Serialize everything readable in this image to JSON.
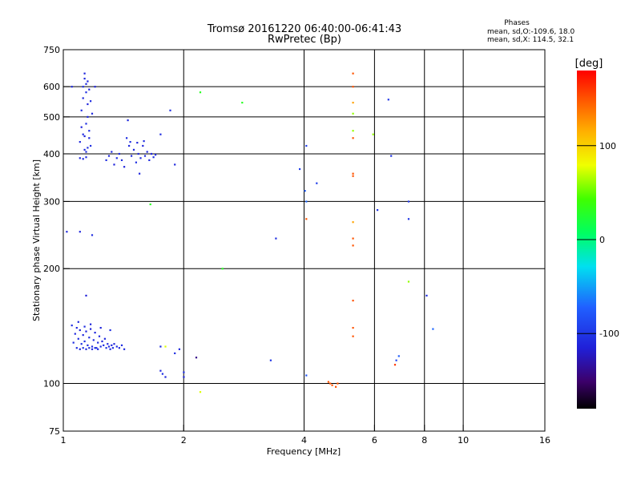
{
  "header": {
    "title_line1": "Tromsø 20161220 06:40:00-06:41:43",
    "title_line2": "RwPretec (Bp)"
  },
  "phases_info": {
    "heading": "Phases",
    "line1": "mean, sd,O:-109.6, 18.0",
    "line2": "mean, sd,X: 114.5, 32.1"
  },
  "colorbar": {
    "label": "[deg]",
    "ticks": [
      {
        "value": 100,
        "label": "100"
      },
      {
        "value": 0,
        "label": "0"
      },
      {
        "value": -100,
        "label": "-100"
      }
    ],
    "range": [
      -180,
      180
    ]
  },
  "chart_data": {
    "type": "scatter",
    "title": "Tromsø 20161220 06:40:00-06:41:43",
    "subtitle": "RwPretec (Bp)",
    "xlabel": "Frequency [MHz]",
    "ylabel": "Stationary phase Virtual Height [km]",
    "xscale": "log",
    "yscale": "log",
    "xlim": [
      1,
      16
    ],
    "ylim": [
      75,
      750
    ],
    "xticks": [
      {
        "v": 1,
        "l": "1"
      },
      {
        "v": 2,
        "l": "2"
      },
      {
        "v": 4,
        "l": "4"
      },
      {
        "v": 6,
        "l": "6"
      },
      {
        "v": 8,
        "l": "8"
      },
      {
        "v": 10,
        "l": "10"
      },
      {
        "v": 16,
        "l": "16"
      }
    ],
    "yticks": [
      {
        "v": 75,
        "l": "75"
      },
      {
        "v": 100,
        "l": "100"
      },
      {
        "v": 200,
        "l": "200"
      },
      {
        "v": 300,
        "l": "300"
      },
      {
        "v": 400,
        "l": "400"
      },
      {
        "v": 500,
        "l": "500"
      },
      {
        "v": 600,
        "l": "600"
      },
      {
        "v": 750,
        "l": "750"
      }
    ],
    "xgrid": [
      2,
      4,
      6,
      8,
      10
    ],
    "ygrid": [
      100,
      200,
      300,
      400,
      500,
      600
    ],
    "grid": true,
    "points": [
      [
        1.06,
        128,
        -105
      ],
      [
        1.07,
        135,
        -108
      ],
      [
        1.08,
        140,
        -110
      ],
      [
        1.09,
        131,
        -106
      ],
      [
        1.1,
        138,
        -112
      ],
      [
        1.11,
        127,
        -104
      ],
      [
        1.12,
        134,
        -109
      ],
      [
        1.13,
        129,
        -103
      ],
      [
        1.14,
        137,
        -111
      ],
      [
        1.15,
        126,
        -107
      ],
      [
        1.16,
        132,
        -105
      ],
      [
        1.17,
        139,
        -113
      ],
      [
        1.18,
        125,
        -106
      ],
      [
        1.19,
        130,
        -108
      ],
      [
        1.2,
        136,
        -110
      ],
      [
        1.21,
        124,
        -104
      ],
      [
        1.22,
        128,
        -107
      ],
      [
        1.23,
        133,
        -109
      ],
      [
        1.24,
        125,
        -105
      ],
      [
        1.25,
        129,
        -112
      ],
      [
        1.26,
        126,
        -106
      ],
      [
        1.27,
        131,
        -108
      ],
      [
        1.28,
        124,
        -103
      ],
      [
        1.29,
        127,
        -110
      ],
      [
        1.3,
        125,
        -107
      ],
      [
        1.31,
        123,
        -105
      ],
      [
        1.32,
        126,
        -109
      ],
      [
        1.33,
        124,
        -104
      ],
      [
        1.34,
        127,
        -111
      ],
      [
        1.36,
        125,
        -106
      ],
      [
        1.38,
        124,
        -108
      ],
      [
        1.4,
        126,
        -105
      ],
      [
        1.42,
        123,
        -107
      ],
      [
        1.08,
        124,
        -106
      ],
      [
        1.1,
        123,
        -109
      ],
      [
        1.12,
        124,
        -104
      ],
      [
        1.14,
        123,
        -108
      ],
      [
        1.16,
        124,
        -105
      ],
      [
        1.18,
        123,
        -110
      ],
      [
        1.2,
        124,
        -103
      ],
      [
        1.22,
        123,
        -107
      ],
      [
        1.05,
        142,
        -104
      ],
      [
        1.09,
        145,
        -108
      ],
      [
        1.13,
        141,
        -106
      ],
      [
        1.17,
        143,
        -110
      ],
      [
        1.24,
        140,
        -112
      ],
      [
        1.31,
        138,
        -105
      ],
      [
        1.14,
        170,
        -115
      ],
      [
        1.1,
        430,
        -108
      ],
      [
        1.11,
        470,
        -112
      ],
      [
        1.11,
        520,
        -106
      ],
      [
        1.12,
        560,
        -110
      ],
      [
        1.12,
        600,
        -104
      ],
      [
        1.13,
        630,
        -109
      ],
      [
        1.13,
        650,
        -111
      ],
      [
        1.14,
        610,
        -107
      ],
      [
        1.14,
        580,
        -105
      ],
      [
        1.15,
        540,
        -112
      ],
      [
        1.15,
        500,
        -108
      ],
      [
        1.16,
        460,
        -106
      ],
      [
        1.16,
        440,
        -110
      ],
      [
        1.17,
        420,
        -104
      ],
      [
        1.13,
        410,
        -109
      ],
      [
        1.12,
        450,
        -107
      ],
      [
        1.14,
        480,
        -105
      ],
      [
        1.15,
        620,
        -110
      ],
      [
        1.16,
        590,
        -113
      ],
      [
        1.17,
        550,
        -106
      ],
      [
        1.18,
        510,
        -108
      ],
      [
        1.13,
        445,
        -112
      ],
      [
        1.14,
        405,
        -104
      ],
      [
        1.15,
        415,
        -106
      ],
      [
        1.1,
        390,
        -110
      ],
      [
        1.12,
        388,
        -108
      ],
      [
        1.14,
        392,
        -105
      ],
      [
        1.05,
        600,
        -108
      ],
      [
        1.2,
        600,
        -111
      ],
      [
        1.28,
        385,
        -105
      ],
      [
        1.3,
        395,
        -110
      ],
      [
        1.32,
        405,
        -107
      ],
      [
        1.34,
        375,
        -112
      ],
      [
        1.36,
        390,
        -104
      ],
      [
        1.38,
        400,
        -108
      ],
      [
        1.4,
        385,
        -106
      ],
      [
        1.42,
        370,
        -110
      ],
      [
        1.44,
        440,
        -105
      ],
      [
        1.46,
        420,
        -109
      ],
      [
        1.48,
        395,
        -107
      ],
      [
        1.5,
        410,
        -111
      ],
      [
        1.52,
        380,
        -104
      ],
      [
        1.54,
        400,
        -108
      ],
      [
        1.56,
        390,
        -106
      ],
      [
        1.58,
        420,
        -112
      ],
      [
        1.6,
        395,
        -105
      ],
      [
        1.62,
        405,
        -109
      ],
      [
        1.64,
        385,
        -107
      ],
      [
        1.66,
        400,
        -110
      ],
      [
        1.68,
        392,
        -104
      ],
      [
        1.7,
        398,
        -108
      ],
      [
        1.47,
        430,
        -106
      ],
      [
        1.53,
        428,
        -111
      ],
      [
        1.59,
        432,
        -105
      ],
      [
        1.45,
        490,
        -108
      ],
      [
        1.55,
        355,
        -110
      ],
      [
        1.75,
        450,
        -106
      ],
      [
        1.85,
        520,
        -104
      ],
      [
        1.9,
        375,
        -109
      ],
      [
        1.02,
        250,
        -108
      ],
      [
        1.1,
        250,
        -110
      ],
      [
        1.18,
        245,
        -106
      ],
      [
        1.65,
        295,
        30
      ],
      [
        2.2,
        580,
        30
      ],
      [
        2.8,
        545,
        30
      ],
      [
        2.5,
        200,
        30
      ],
      [
        2.2,
        95,
        75
      ],
      [
        1.9,
        120,
        -105
      ],
      [
        1.95,
        123,
        -110
      ],
      [
        1.75,
        125,
        -106
      ],
      [
        1.8,
        125,
        75
      ],
      [
        1.75,
        108,
        -108
      ],
      [
        1.77,
        106,
        -104
      ],
      [
        1.8,
        104,
        -110
      ],
      [
        2.0,
        107,
        -105
      ],
      [
        2.0,
        104,
        -112
      ],
      [
        2.15,
        117,
        -140
      ],
      [
        3.4,
        240,
        -105
      ],
      [
        3.3,
        115,
        -100
      ],
      [
        3.9,
        365,
        -95
      ],
      [
        4.05,
        300,
        -70
      ],
      [
        4.02,
        320,
        -75
      ],
      [
        4.05,
        105,
        -80
      ],
      [
        4.05,
        270,
        150
      ],
      [
        4.05,
        420,
        -95
      ],
      [
        4.3,
        335,
        -95
      ],
      [
        4.6,
        101,
        150
      ],
      [
        4.65,
        100,
        150
      ],
      [
        4.7,
        99,
        150
      ],
      [
        4.8,
        98,
        150
      ],
      [
        4.85,
        100,
        150
      ],
      [
        5.3,
        650,
        150
      ],
      [
        5.3,
        600,
        150
      ],
      [
        5.3,
        545,
        120
      ],
      [
        5.3,
        510,
        60
      ],
      [
        5.3,
        460,
        60
      ],
      [
        5.3,
        440,
        150
      ],
      [
        5.3,
        355,
        150
      ],
      [
        5.3,
        350,
        150
      ],
      [
        5.3,
        265,
        120
      ],
      [
        5.3,
        240,
        150
      ],
      [
        5.3,
        230,
        150
      ],
      [
        5.3,
        165,
        150
      ],
      [
        5.3,
        140,
        150
      ],
      [
        5.3,
        133,
        150
      ],
      [
        5.95,
        450,
        60
      ],
      [
        6.1,
        285,
        -100
      ],
      [
        6.5,
        555,
        -100
      ],
      [
        6.6,
        395,
        -100
      ],
      [
        6.8,
        115,
        -90
      ],
      [
        6.9,
        118,
        -75
      ],
      [
        6.75,
        112,
        160
      ],
      [
        7.3,
        300,
        -100
      ],
      [
        7.3,
        270,
        -100
      ],
      [
        7.3,
        185,
        60
      ],
      [
        8.1,
        170,
        -105
      ],
      [
        8.4,
        139,
        -70
      ]
    ]
  }
}
